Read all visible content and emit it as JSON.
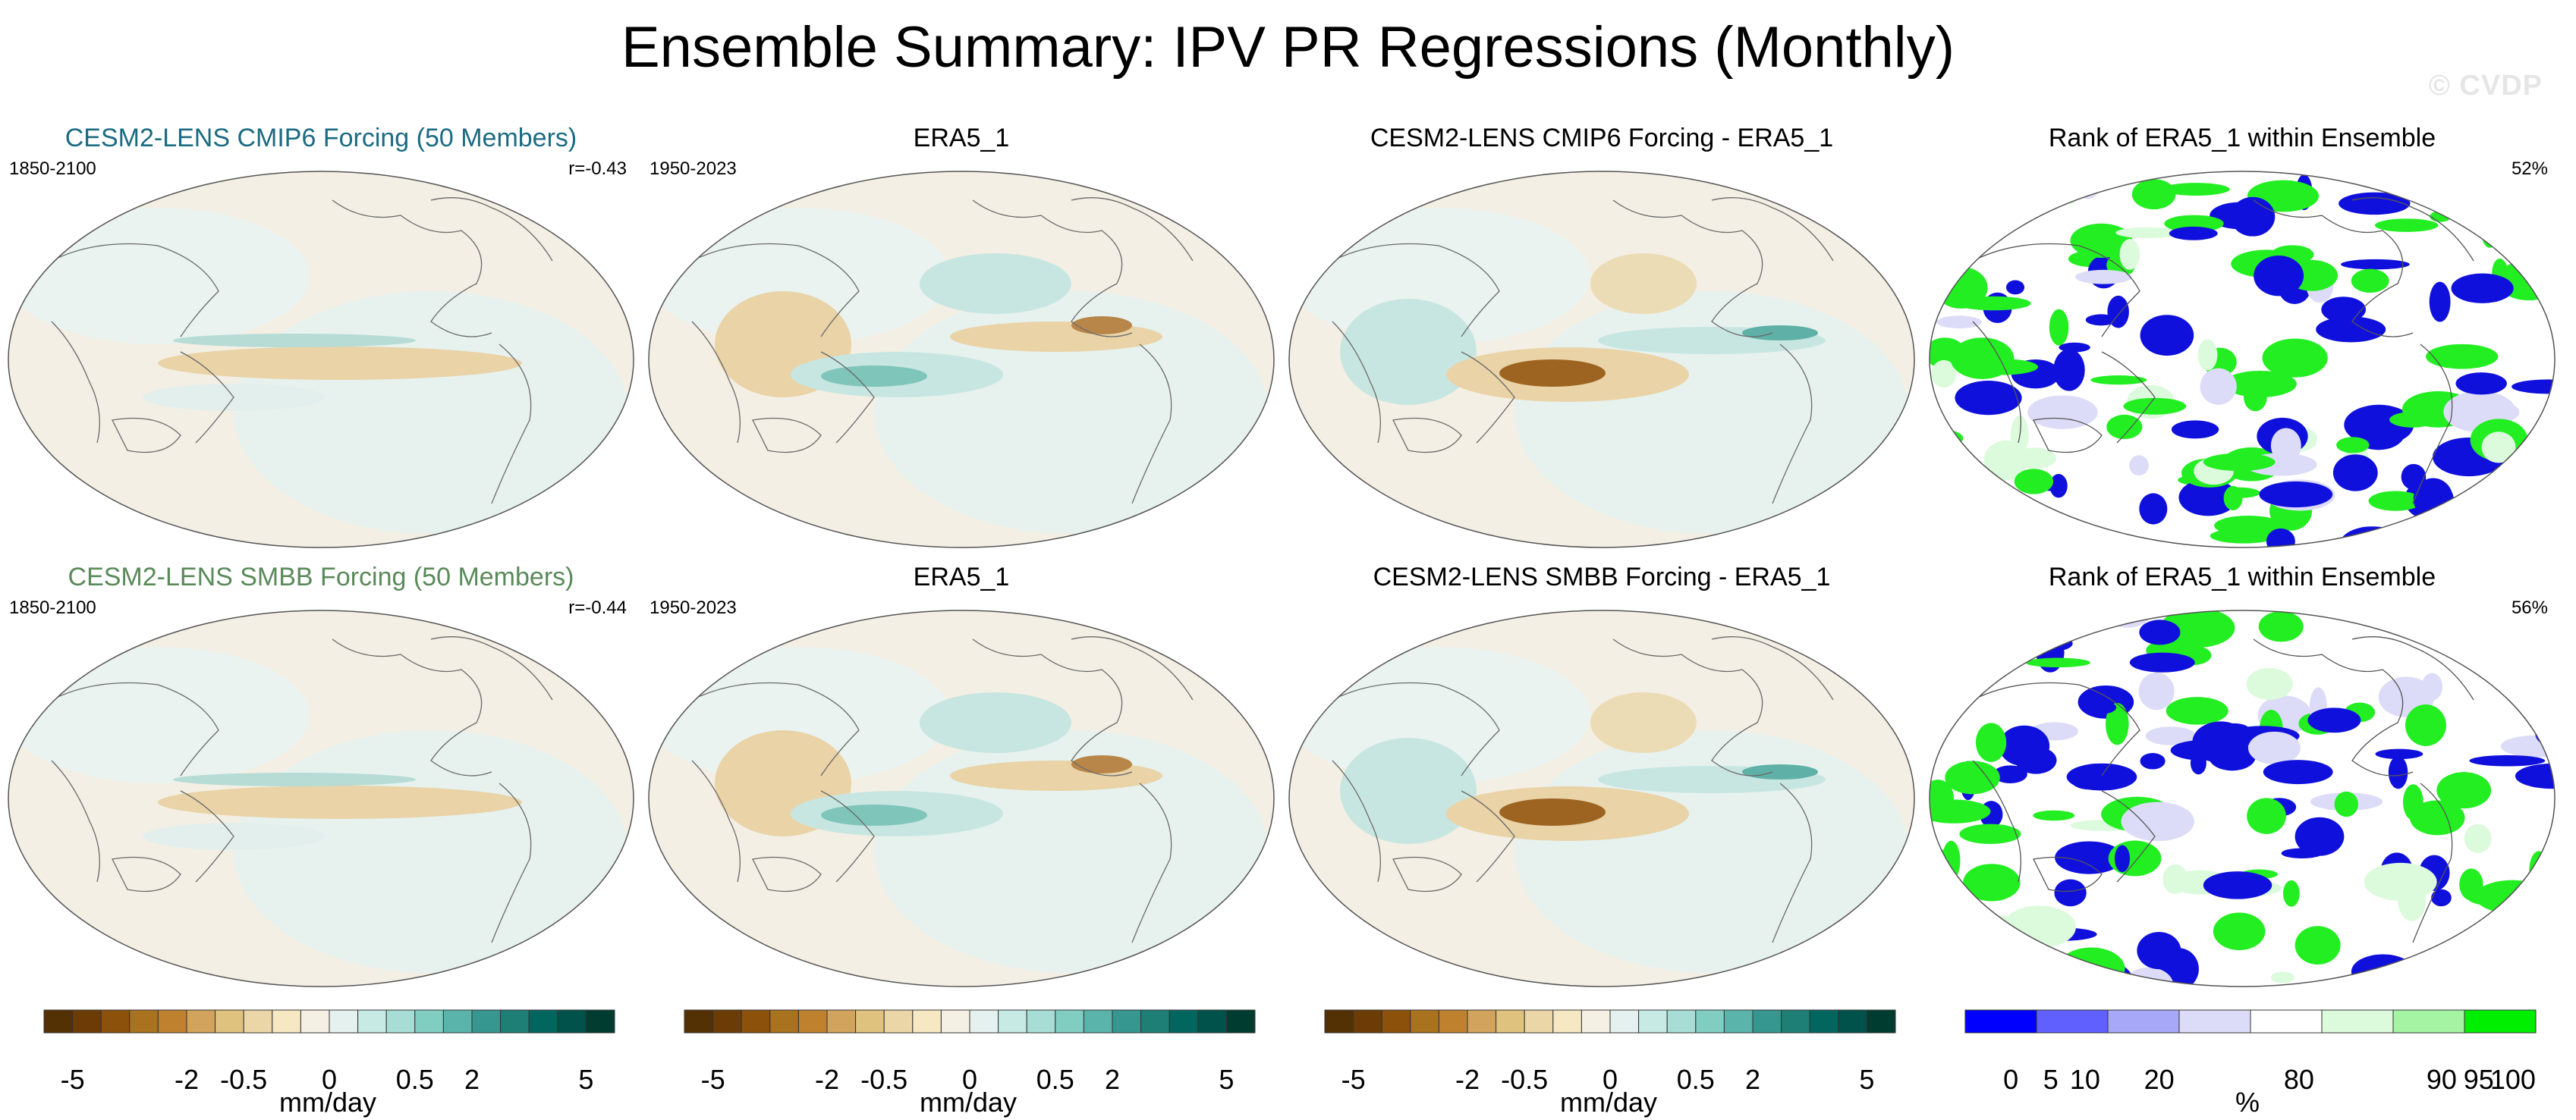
{
  "title": "Ensemble Summary: IPV PR Regressions (Monthly)",
  "watermark": "© CVDP",
  "colors": {
    "title_row1": "#1b6b82",
    "title_row2": "#5a8a5a",
    "ocean_bg": "#f4efe4",
    "wet": "#c8e6e1",
    "dry": "#e9d3a7",
    "rank_low": "#1010dd",
    "rank_high": "#22ee22"
  },
  "chart_data": [
    {
      "type": "heatmap",
      "id": "r1c1",
      "title": "CESM2-LENS CMIP6 Forcing (50 Members)",
      "period": "1850-2100",
      "stat": "r=-0.43",
      "variable": "PR regression on IPV",
      "units": "mm/day",
      "colormap": "brown-to-teal"
    },
    {
      "type": "heatmap",
      "id": "r1c2",
      "title": "ERA5_1",
      "period": "1950-2023",
      "stat": "",
      "units": "mm/day",
      "colormap": "brown-to-teal"
    },
    {
      "type": "heatmap",
      "id": "r1c3",
      "title": "CESM2-LENS CMIP6 Forcing - ERA5_1",
      "period": "",
      "stat": "",
      "units": "mm/day",
      "colormap": "brown-to-teal"
    },
    {
      "type": "heatmap",
      "id": "r1c4",
      "title": "Rank of ERA5_1 within Ensemble",
      "period": "",
      "stat": "52%",
      "units": "%",
      "colormap": "blue-white-green"
    },
    {
      "type": "heatmap",
      "id": "r2c1",
      "title": "CESM2-LENS SMBB Forcing (50 Members)",
      "period": "1850-2100",
      "stat": "r=-0.44",
      "units": "mm/day",
      "colormap": "brown-to-teal"
    },
    {
      "type": "heatmap",
      "id": "r2c2",
      "title": "ERA5_1",
      "period": "1950-2023",
      "stat": "",
      "units": "mm/day",
      "colormap": "brown-to-teal"
    },
    {
      "type": "heatmap",
      "id": "r2c3",
      "title": "CESM2-LENS SMBB Forcing - ERA5_1",
      "period": "",
      "stat": "",
      "units": "mm/day",
      "colormap": "brown-to-teal"
    },
    {
      "type": "heatmap",
      "id": "r2c4",
      "title": "Rank of ERA5_1 within Ensemble",
      "period": "",
      "stat": "56%",
      "units": "%",
      "colormap": "blue-white-green"
    }
  ],
  "colorbars": {
    "precip": {
      "units": "mm/day",
      "tick_labels": [
        "-5",
        "-2",
        "-0.5",
        "0",
        "0.5",
        "2",
        "5"
      ],
      "colors": [
        "#543005",
        "#6c3c07",
        "#8c510a",
        "#a8721f",
        "#bf812d",
        "#d2a35c",
        "#dfc27d",
        "#ebd6a8",
        "#f6e8c3",
        "#f5f0e4",
        "#e4f1ee",
        "#c7eae5",
        "#a8ddd5",
        "#80cdc1",
        "#5ab4ac",
        "#35978f",
        "#1e7f77",
        "#01665e",
        "#00524a",
        "#003c30"
      ]
    },
    "rank": {
      "units": "%",
      "tick_labels": [
        "0",
        "5",
        "10",
        "20",
        "80",
        "90",
        "95",
        "100"
      ],
      "colors": [
        "#0000ff",
        "#6060ff",
        "#a8a8f8",
        "#dcdcf8",
        "#ffffff",
        "#dcfadc",
        "#a4f4a4",
        "#00ee00"
      ]
    }
  }
}
